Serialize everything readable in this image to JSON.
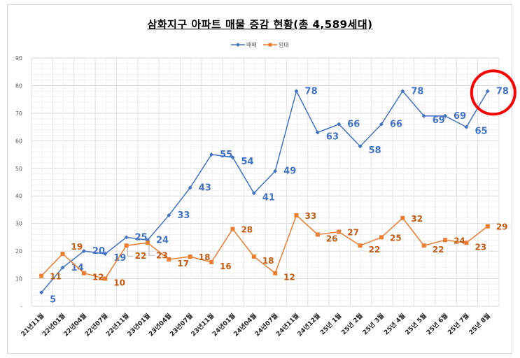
{
  "chart_data": {
    "type": "line",
    "title": "삼화지구 아파트 매물 증감 현황(총 4,589세대)",
    "xlabel": "",
    "ylabel": "",
    "ylim": [
      0,
      90
    ],
    "yticks": [
      "-",
      "10",
      "20",
      "30",
      "40",
      "50",
      "60",
      "70",
      "80",
      "90"
    ],
    "grid": true,
    "legend_position": "top-center",
    "categories": [
      "21년11월",
      "22년01월",
      "22년04월",
      "22년07월",
      "22년11월",
      "23년01월",
      "23년04월",
      "23년07월",
      "23년11월",
      "24년01월",
      "24년04월",
      "24년07월",
      "24년11월",
      "24년12월",
      "25년 1월",
      "25년 2월",
      "25년 3월",
      "25년 4월",
      "25년 5월",
      "25년 6월",
      "25년 7월",
      "25년 8월"
    ],
    "series": [
      {
        "name": "매매",
        "color": "#4472c4",
        "marker": "diamond",
        "values": [
          5,
          14,
          20,
          19,
          25,
          24,
          33,
          43,
          55,
          54,
          41,
          49,
          78,
          63,
          66,
          58,
          66,
          78,
          69,
          69,
          65,
          78
        ]
      },
      {
        "name": "임대",
        "color": "#ed7d31",
        "marker": "square",
        "values": [
          11,
          19,
          12,
          10,
          22,
          23,
          17,
          18,
          16,
          28,
          18,
          12,
          33,
          26,
          27,
          22,
          25,
          32,
          22,
          24,
          23,
          29
        ]
      }
    ],
    "annotations": [
      {
        "type": "red-circle",
        "target": "매매 25년 8월",
        "color": "#ff0000"
      }
    ]
  }
}
